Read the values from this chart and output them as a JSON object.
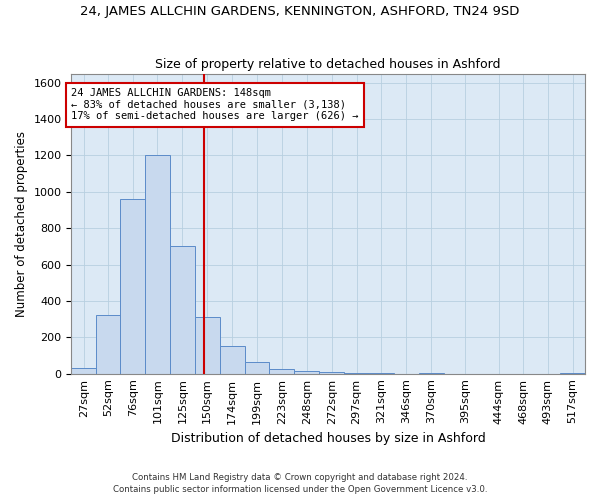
{
  "title": "24, JAMES ALLCHIN GARDENS, KENNINGTON, ASHFORD, TN24 9SD",
  "subtitle": "Size of property relative to detached houses in Ashford",
  "xlabel": "Distribution of detached houses by size in Ashford",
  "ylabel": "Number of detached properties",
  "footer_line1": "Contains HM Land Registry data © Crown copyright and database right 2024.",
  "footer_line2": "Contains public sector information licensed under the Open Government Licence v3.0.",
  "bin_labels": [
    "27sqm",
    "52sqm",
    "76sqm",
    "101sqm",
    "125sqm",
    "150sqm",
    "174sqm",
    "199sqm",
    "223sqm",
    "248sqm",
    "272sqm",
    "297sqm",
    "321sqm",
    "346sqm",
    "370sqm",
    "395sqm",
    "444sqm",
    "468sqm",
    "493sqm",
    "517sqm"
  ],
  "bar_heights": [
    30,
    320,
    960,
    1200,
    700,
    310,
    150,
    65,
    25,
    15,
    10,
    5,
    2,
    0,
    1,
    0,
    0,
    0,
    0,
    1
  ],
  "bin_edges": [
    14.5,
    39.5,
    63.5,
    88.5,
    113.5,
    138.5,
    163.5,
    188.5,
    213.5,
    238.5,
    263.5,
    288.5,
    313.5,
    338.5,
    363.5,
    388.5,
    431.5,
    456.5,
    480.5,
    505.5,
    530.5
  ],
  "property_size": 148,
  "vline_x": 148,
  "annotation_text": "24 JAMES ALLCHIN GARDENS: 148sqm\n← 83% of detached houses are smaller (3,138)\n17% of semi-detached houses are larger (626) →",
  "bar_color": "#c8d9ee",
  "bar_edge_color": "#5b8bc9",
  "vline_color": "#cc0000",
  "annotation_box_color": "#cc0000",
  "grid_color": "#b8cfe0",
  "background_color": "#dce9f5",
  "ylim": [
    0,
    1650
  ],
  "yticks": [
    0,
    200,
    400,
    600,
    800,
    1000,
    1200,
    1400,
    1600
  ],
  "title_fontsize": 9.5,
  "subtitle_fontsize": 9,
  "xlabel_fontsize": 9,
  "ylabel_fontsize": 8.5,
  "tick_fontsize": 8,
  "annotation_fontsize": 7.5
}
